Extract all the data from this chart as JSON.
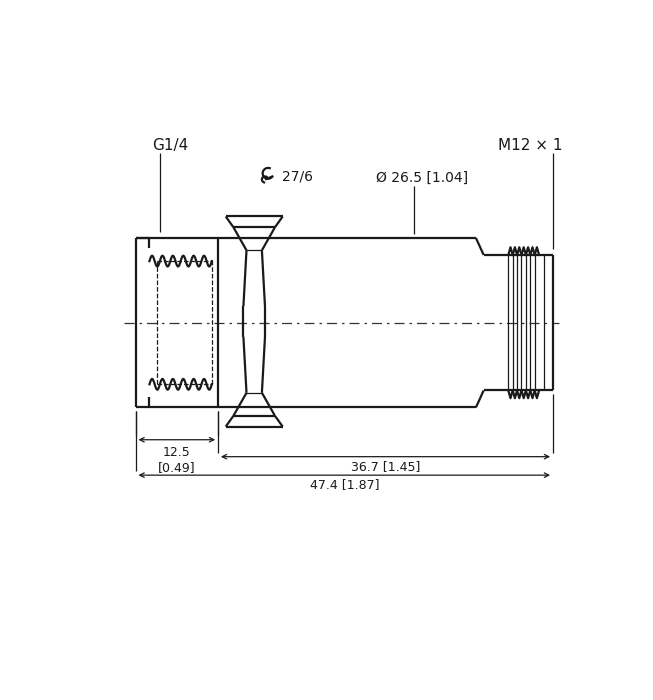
{
  "bg_color": "#ffffff",
  "line_color": "#1a1a1a",
  "fig_width": 6.53,
  "fig_height": 7.0,
  "dpi": 100,
  "labels": {
    "G14": "G1/4",
    "M12": "M12 × 1",
    "wrench": "27/6",
    "diameter": "Ø 26.5 [1.04]",
    "dim1": "12.5\n[0.49]",
    "dim2": "36.7 [1.45]",
    "dim3": "47.4 [1.87]"
  }
}
